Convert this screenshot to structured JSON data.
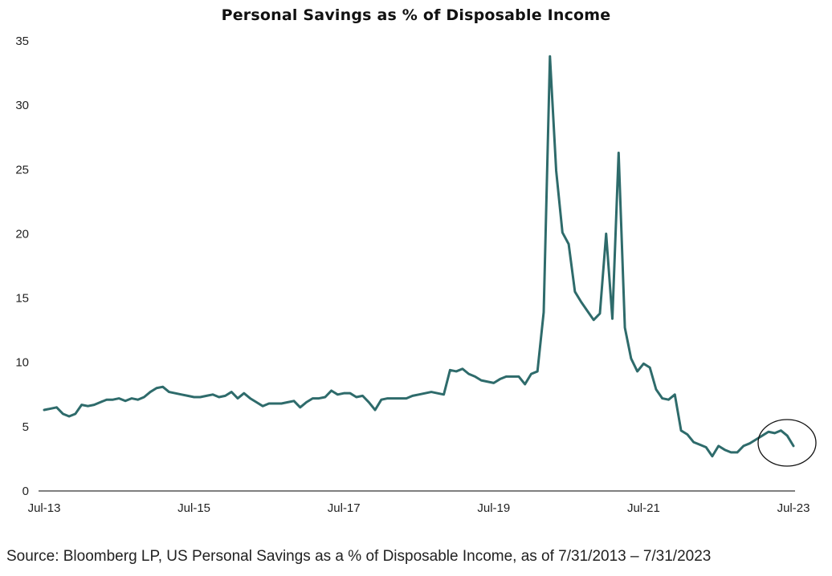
{
  "chart_data": {
    "type": "line",
    "title": "Personal Savings as % of Disposable Income",
    "xlabel": "",
    "ylabel": "",
    "ylim": [
      0,
      35
    ],
    "yticks": [
      "0",
      "5",
      "10",
      "15",
      "20",
      "25",
      "30",
      "35"
    ],
    "xticks": [
      "Jul-13",
      "Jul-15",
      "Jul-17",
      "Jul-19",
      "Jul-21",
      "Jul-23"
    ],
    "grid": false,
    "legend": "none",
    "line_color": "#2e6b6b",
    "annotation": "circle around Apr-23 to Jul-23 values",
    "series": [
      {
        "x": [
          "2013-07",
          "2013-08",
          "2013-09",
          "2013-10",
          "2013-11",
          "2013-12",
          "2014-01",
          "2014-02",
          "2014-03",
          "2014-04",
          "2014-05",
          "2014-06",
          "2014-07",
          "2014-08",
          "2014-09",
          "2014-10",
          "2014-11",
          "2014-12",
          "2015-01",
          "2015-02",
          "2015-03",
          "2015-04",
          "2015-05",
          "2015-06",
          "2015-07",
          "2015-08",
          "2015-09",
          "2015-10",
          "2015-11",
          "2015-12",
          "2016-01",
          "2016-02",
          "2016-03",
          "2016-04",
          "2016-05",
          "2016-06",
          "2016-07",
          "2016-08",
          "2016-09",
          "2016-10",
          "2016-11",
          "2016-12",
          "2017-01",
          "2017-02",
          "2017-03",
          "2017-04",
          "2017-05",
          "2017-06",
          "2017-07",
          "2017-08",
          "2017-09",
          "2017-10",
          "2017-11",
          "2017-12",
          "2018-01",
          "2018-02",
          "2018-03",
          "2018-04",
          "2018-05",
          "2018-06",
          "2018-07",
          "2018-08",
          "2018-09",
          "2018-10",
          "2018-11",
          "2018-12",
          "2019-01",
          "2019-02",
          "2019-03",
          "2019-04",
          "2019-05",
          "2019-06",
          "2019-07",
          "2019-08",
          "2019-09",
          "2019-10",
          "2019-11",
          "2019-12",
          "2020-01",
          "2020-02",
          "2020-03",
          "2020-04",
          "2020-05",
          "2020-06",
          "2020-07",
          "2020-08",
          "2020-09",
          "2020-10",
          "2020-11",
          "2020-12",
          "2021-01",
          "2021-02",
          "2021-03",
          "2021-04",
          "2021-05",
          "2021-06",
          "2021-07",
          "2021-08",
          "2021-09",
          "2021-10",
          "2021-11",
          "2021-12",
          "2022-01",
          "2022-02",
          "2022-03",
          "2022-04",
          "2022-05",
          "2022-06",
          "2022-07",
          "2022-08",
          "2022-09",
          "2022-10",
          "2022-11",
          "2022-12",
          "2023-01",
          "2023-02",
          "2023-03",
          "2023-04",
          "2023-05",
          "2023-06",
          "2023-07"
        ],
        "values": [
          6.3,
          6.4,
          6.5,
          6.0,
          5.8,
          6.0,
          6.7,
          6.6,
          6.7,
          6.9,
          7.1,
          7.1,
          7.2,
          7.0,
          7.2,
          7.1,
          7.3,
          7.7,
          8.0,
          8.1,
          7.7,
          7.6,
          7.5,
          7.4,
          7.3,
          7.3,
          7.4,
          7.5,
          7.3,
          7.4,
          7.7,
          7.2,
          7.6,
          7.2,
          6.9,
          6.6,
          6.8,
          6.8,
          6.8,
          6.9,
          7.0,
          6.5,
          6.9,
          7.2,
          7.2,
          7.3,
          7.8,
          7.5,
          7.6,
          7.6,
          7.3,
          7.4,
          6.9,
          6.3,
          7.1,
          7.2,
          7.2,
          7.2,
          7.2,
          7.4,
          7.5,
          7.6,
          7.7,
          7.6,
          7.5,
          9.4,
          9.3,
          9.5,
          9.1,
          8.9,
          8.6,
          8.5,
          8.4,
          8.7,
          8.9,
          8.9,
          8.9,
          8.3,
          9.1,
          9.3,
          13.9,
          33.8,
          24.9,
          20.1,
          19.2,
          15.5,
          14.7,
          14.0,
          13.3,
          13.8,
          20.0,
          13.4,
          26.3,
          12.7,
          10.3,
          9.3,
          9.9,
          9.6,
          7.9,
          7.2,
          7.1,
          7.5,
          4.7,
          4.4,
          3.8,
          3.6,
          3.4,
          2.7,
          3.5,
          3.2,
          3.0,
          3.0,
          3.5,
          3.7,
          4.0,
          4.3,
          4.6,
          4.5,
          4.7,
          4.3,
          3.5
        ]
      }
    ]
  },
  "source_note": "Source: Bloomberg LP, US Personal Savings as a % of Disposable Income, as of 7/31/2013 – 7/31/2023"
}
